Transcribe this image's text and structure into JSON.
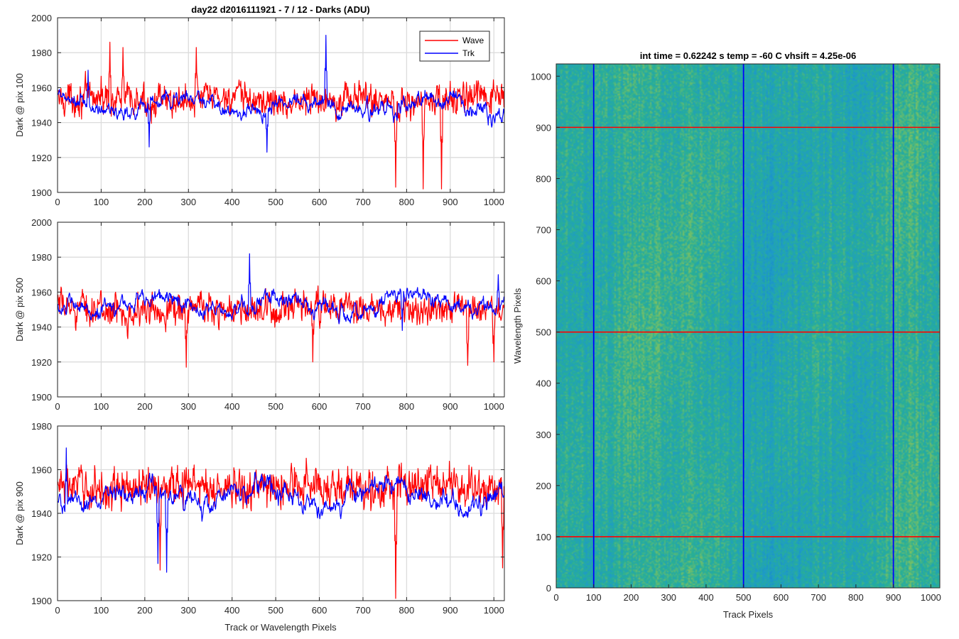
{
  "chart_data": [
    {
      "type": "line",
      "title": "day22 d2016111921 - 7 / 12 - Darks (ADU)",
      "xlabel": "",
      "ylabel": "Dark @ pix 100",
      "xlim": [
        0,
        1024
      ],
      "ylim": [
        1900,
        2000
      ],
      "xticks": [
        0,
        100,
        200,
        300,
        400,
        500,
        600,
        700,
        800,
        900,
        1000
      ],
      "yticks": [
        1900,
        1920,
        1940,
        1960,
        1980,
        2000
      ],
      "grid": true,
      "legend": {
        "position": "top-right",
        "entries": [
          "Wave",
          "Trk"
        ]
      },
      "series": [
        {
          "name": "Wave",
          "color": "#ff0000",
          "mean": 1953,
          "noise": 9,
          "features": [
            [
              120,
              1986
            ],
            [
              150,
              1983
            ],
            [
              318,
              1983
            ],
            [
              775,
              1903
            ],
            [
              838,
              1902
            ],
            [
              880,
              1902
            ]
          ]
        },
        {
          "name": "Trk",
          "color": "#0000ff",
          "mean": 1950,
          "noise": 6,
          "features": [
            [
              70,
              1970
            ],
            [
              210,
              1926
            ],
            [
              480,
              1923
            ],
            [
              615,
              1990
            ],
            [
              770,
              1940
            ]
          ]
        }
      ]
    },
    {
      "type": "line",
      "title": "",
      "xlabel": "",
      "ylabel": "Dark @ pix 500",
      "xlim": [
        0,
        1024
      ],
      "ylim": [
        1900,
        2000
      ],
      "xticks": [
        0,
        100,
        200,
        300,
        400,
        500,
        600,
        700,
        800,
        900,
        1000
      ],
      "yticks": [
        1900,
        1920,
        1940,
        1960,
        1980,
        2000
      ],
      "grid": true,
      "series": [
        {
          "name": "Wave",
          "color": "#ff0000",
          "mean": 1950,
          "noise": 9,
          "features": [
            [
              295,
              1917
            ],
            [
              585,
              1920
            ],
            [
              940,
              1918
            ],
            [
              1000,
              1920
            ]
          ]
        },
        {
          "name": "Trk",
          "color": "#0000ff",
          "mean": 1953,
          "noise": 6,
          "features": [
            [
              440,
              1982
            ],
            [
              790,
              1938
            ],
            [
              1010,
              1970
            ]
          ]
        }
      ]
    },
    {
      "type": "line",
      "title": "",
      "xlabel": "Track or Wavelength Pixels",
      "ylabel": "Dark @ pix 900",
      "xlim": [
        0,
        1024
      ],
      "ylim": [
        1900,
        1980
      ],
      "xticks": [
        0,
        100,
        200,
        300,
        400,
        500,
        600,
        700,
        800,
        900,
        1000
      ],
      "yticks": [
        1900,
        1920,
        1940,
        1960,
        1980
      ],
      "grid": true,
      "series": [
        {
          "name": "Wave",
          "color": "#ff0000",
          "mean": 1952,
          "noise": 9,
          "features": [
            [
              775,
              1901
            ],
            [
              235,
              1914
            ],
            [
              1020,
              1915
            ]
          ]
        },
        {
          "name": "Trk",
          "color": "#0000ff",
          "mean": 1948,
          "noise": 6,
          "features": [
            [
              250,
              1913
            ],
            [
              230,
              1917
            ],
            [
              20,
              1970
            ]
          ]
        }
      ]
    },
    {
      "type": "heatmap",
      "title": "int time = 0.62242 s    temp = -60 C    vhsift = 4.25e-06",
      "xlabel": "Track Pixels",
      "ylabel": "Wavelength Pixels",
      "xlim": [
        0,
        1024
      ],
      "ylim": [
        0,
        1024
      ],
      "xticks": [
        0,
        100,
        200,
        300,
        400,
        500,
        600,
        700,
        800,
        900,
        1000
      ],
      "yticks": [
        0,
        100,
        200,
        300,
        400,
        500,
        600,
        700,
        800,
        900,
        1000
      ],
      "colormap": "parula",
      "vertical_lines": {
        "x": [
          100,
          500,
          900
        ],
        "color": "#0000ff"
      },
      "horizontal_lines": {
        "y": [
          100,
          500,
          900
        ],
        "color": "#ff0000"
      }
    }
  ]
}
